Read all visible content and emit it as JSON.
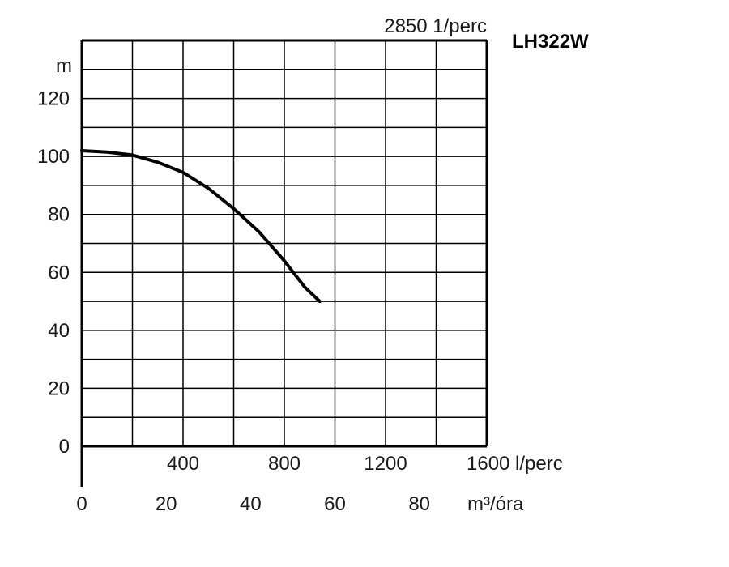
{
  "chart_data": {
    "type": "line",
    "title": "LH322W",
    "subtitle": "2850 1/perc",
    "ylabel": "m",
    "x_primary_label": "l/perc",
    "x_secondary_label": "m³/óra",
    "ylim": [
      0,
      140
    ],
    "xlim": [
      0,
      1600
    ],
    "y_ticks": [
      0,
      20,
      40,
      60,
      80,
      100,
      120
    ],
    "x_primary_ticks": [
      "400",
      "800",
      "1200",
      "1600 l/perc"
    ],
    "x_secondary_ticks": [
      "0",
      "20",
      "40",
      "60",
      "80"
    ],
    "x_secondary_tick_values": [
      0,
      20,
      40,
      60,
      80
    ],
    "grid": true,
    "series": [
      {
        "x": [
          0,
          100,
          200,
          300,
          400,
          500,
          600,
          700,
          800,
          880,
          940
        ],
        "y": [
          102,
          101.5,
          100.5,
          98,
          94.5,
          89,
          82,
          74,
          64,
          55,
          50
        ]
      }
    ],
    "colors": {
      "line": "#000000",
      "grid": "#000000",
      "text": "#1a1a1a"
    }
  }
}
